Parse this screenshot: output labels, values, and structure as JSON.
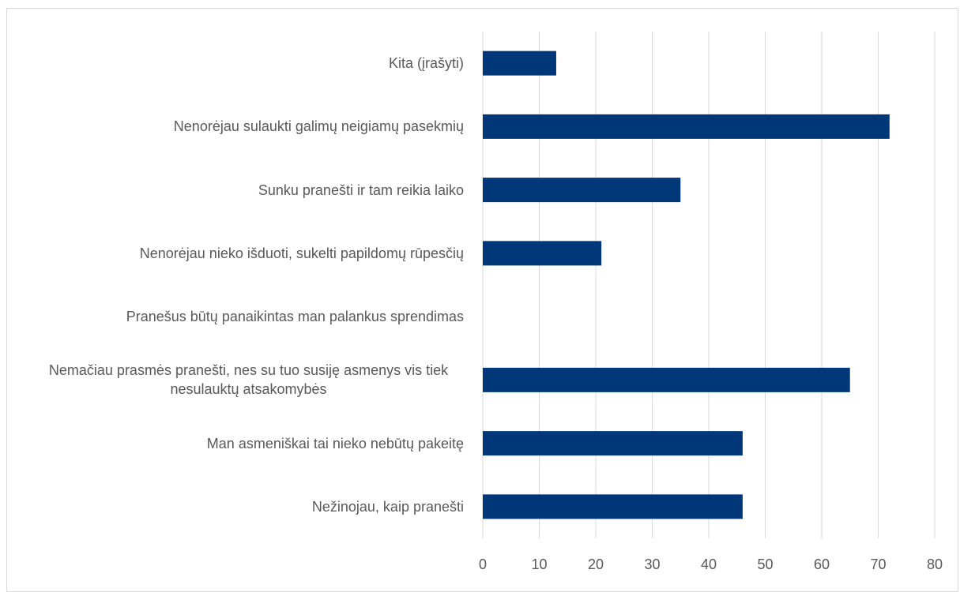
{
  "chart_data": {
    "type": "bar",
    "orientation": "horizontal",
    "categories": [
      "Kita (įrašyti)",
      "Nenorėjau sulaukti galimų neigiamų pasekmių",
      "Sunku pranešti ir tam reikia laiko",
      "Nenorėjau nieko išduoti, sukelti papildomų rūpesčių",
      "Pranešus būtų panaikintas man palankus sprendimas",
      "Nemačiau prasmės pranešti, nes su tuo susiję asmenys vis tiek nesulauktų atsakomybės",
      "Man asmeniškai tai nieko nebūtų pakeitę",
      "Nežinojau, kaip pranešti"
    ],
    "values": [
      13,
      72,
      35,
      21,
      0,
      65,
      46,
      46
    ],
    "color": "#003778",
    "xlim": [
      0,
      80
    ],
    "xticks": [
      0,
      10,
      20,
      30,
      40,
      50,
      60,
      70,
      80
    ],
    "grid": true
  }
}
